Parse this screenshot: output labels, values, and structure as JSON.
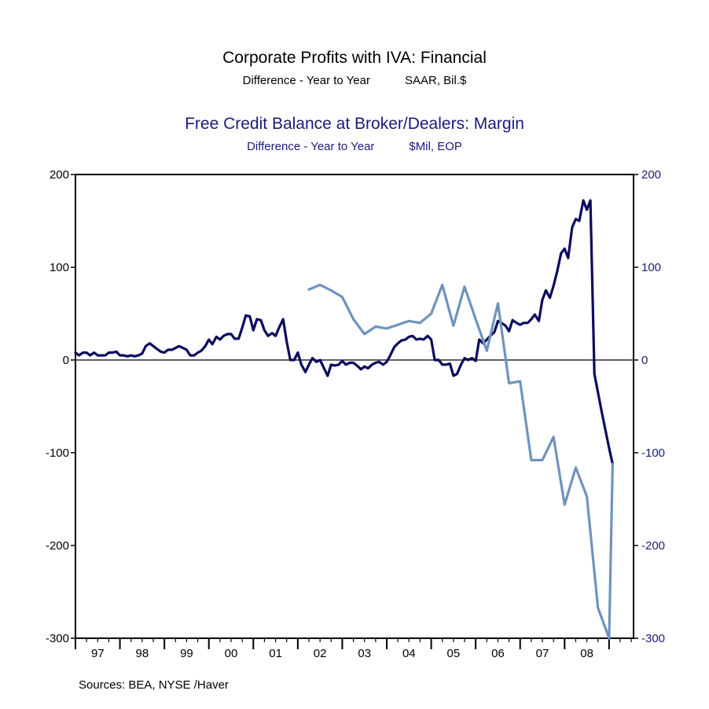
{
  "titles": {
    "main1": "Corporate Profits with IVA: Financial",
    "sub1_left": "Difference - Year to Year",
    "sub1_right": "SAAR, Bil.$",
    "main2": "Free Credit Balance at Broker/Dealers: Margin",
    "sub2_left": "Difference - Year to Year",
    "sub2_right": "$Mil, EOP"
  },
  "source": "Sources:  BEA, NYSE /Haver",
  "colors": {
    "series1": "#0b0b5e",
    "series2": "#6f93bd",
    "axis_right": "#1a1a78"
  },
  "chart_data": {
    "type": "line",
    "x_ticks": [
      "97",
      "98",
      "99",
      "00",
      "01",
      "02",
      "03",
      "04",
      "05",
      "06",
      "07",
      "08"
    ],
    "x_range": [
      1996.0,
      2008.55
    ],
    "y_left": {
      "ticks": [
        "200",
        "100",
        "0",
        "-100",
        "-200",
        "-300"
      ],
      "ylim": [
        -300,
        200
      ]
    },
    "y_right": {
      "ticks": [
        "200",
        "100",
        "0",
        "-100",
        "-200",
        "-300"
      ],
      "ylim": [
        -300,
        200
      ]
    },
    "zero_line": true,
    "series": [
      {
        "name": "Free Credit Balance at Broker/Dealers: Margin",
        "axis": "left",
        "points": [
          [
            1996.0,
            8
          ],
          [
            1996.08,
            5
          ],
          [
            1996.17,
            8
          ],
          [
            1996.25,
            8
          ],
          [
            1996.33,
            5
          ],
          [
            1996.42,
            8
          ],
          [
            1996.5,
            5
          ],
          [
            1996.58,
            5
          ],
          [
            1996.67,
            5
          ],
          [
            1996.75,
            8
          ],
          [
            1996.83,
            8
          ],
          [
            1996.92,
            9
          ],
          [
            1997.0,
            5
          ],
          [
            1997.08,
            5
          ],
          [
            1997.17,
            4
          ],
          [
            1997.25,
            5
          ],
          [
            1997.33,
            4
          ],
          [
            1997.42,
            5
          ],
          [
            1997.5,
            7
          ],
          [
            1997.58,
            15
          ],
          [
            1997.67,
            18
          ],
          [
            1997.75,
            15
          ],
          [
            1997.83,
            12
          ],
          [
            1997.92,
            9
          ],
          [
            1998.0,
            8
          ],
          [
            1998.08,
            11
          ],
          [
            1998.17,
            11
          ],
          [
            1998.25,
            13
          ],
          [
            1998.33,
            15
          ],
          [
            1998.42,
            13
          ],
          [
            1998.5,
            11
          ],
          [
            1998.58,
            5
          ],
          [
            1998.67,
            5
          ],
          [
            1998.75,
            8
          ],
          [
            1998.83,
            10
          ],
          [
            1998.92,
            15
          ],
          [
            1999.0,
            22
          ],
          [
            1999.08,
            17
          ],
          [
            1999.17,
            25
          ],
          [
            1999.25,
            22
          ],
          [
            1999.33,
            26
          ],
          [
            1999.42,
            28
          ],
          [
            1999.5,
            28
          ],
          [
            1999.58,
            23
          ],
          [
            1999.67,
            23
          ],
          [
            1999.75,
            35
          ],
          [
            1999.83,
            48
          ],
          [
            1999.92,
            47
          ],
          [
            2000.0,
            32
          ],
          [
            2000.08,
            44
          ],
          [
            2000.17,
            43
          ],
          [
            2000.25,
            32
          ],
          [
            2000.33,
            26
          ],
          [
            2000.42,
            29
          ],
          [
            2000.5,
            26
          ],
          [
            2000.58,
            35
          ],
          [
            2000.67,
            44
          ],
          [
            2000.75,
            20
          ],
          [
            2000.83,
            0
          ],
          [
            2000.92,
            0
          ],
          [
            2001.0,
            8
          ],
          [
            2001.08,
            -5
          ],
          [
            2001.17,
            -13
          ],
          [
            2001.25,
            -5
          ],
          [
            2001.33,
            2
          ],
          [
            2001.42,
            -2
          ],
          [
            2001.5,
            0
          ],
          [
            2001.58,
            -8
          ],
          [
            2001.67,
            -17
          ],
          [
            2001.75,
            -5
          ],
          [
            2001.83,
            -6
          ],
          [
            2001.92,
            -5
          ],
          [
            2002.0,
            -1
          ],
          [
            2002.08,
            -5
          ],
          [
            2002.17,
            -3
          ],
          [
            2002.25,
            -3
          ],
          [
            2002.33,
            -6
          ],
          [
            2002.42,
            -10
          ],
          [
            2002.5,
            -7
          ],
          [
            2002.58,
            -9
          ],
          [
            2002.67,
            -5
          ],
          [
            2002.75,
            -3
          ],
          [
            2002.83,
            -2
          ],
          [
            2002.92,
            -5
          ],
          [
            2003.0,
            -2
          ],
          [
            2003.08,
            5
          ],
          [
            2003.17,
            14
          ],
          [
            2003.25,
            18
          ],
          [
            2003.33,
            21
          ],
          [
            2003.42,
            22
          ],
          [
            2003.5,
            25
          ],
          [
            2003.58,
            26
          ],
          [
            2003.67,
            22
          ],
          [
            2003.75,
            23
          ],
          [
            2003.83,
            22
          ],
          [
            2003.92,
            26
          ],
          [
            2004.0,
            22
          ],
          [
            2004.08,
            0
          ],
          [
            2004.17,
            0
          ],
          [
            2004.25,
            -5
          ],
          [
            2004.33,
            -5
          ],
          [
            2004.42,
            -4
          ],
          [
            2004.5,
            -17
          ],
          [
            2004.58,
            -15
          ],
          [
            2004.67,
            -5
          ],
          [
            2004.75,
            2
          ],
          [
            2004.83,
            0
          ],
          [
            2004.92,
            2
          ],
          [
            2005.0,
            -1
          ],
          [
            2005.08,
            22
          ],
          [
            2005.17,
            18
          ],
          [
            2005.25,
            22
          ],
          [
            2005.33,
            26
          ],
          [
            2005.42,
            30
          ],
          [
            2005.5,
            42
          ],
          [
            2005.58,
            40
          ],
          [
            2005.67,
            37
          ],
          [
            2005.75,
            31
          ],
          [
            2005.83,
            43
          ],
          [
            2005.92,
            40
          ],
          [
            2006.0,
            38
          ],
          [
            2006.08,
            40
          ],
          [
            2006.17,
            40
          ],
          [
            2006.25,
            44
          ],
          [
            2006.33,
            49
          ],
          [
            2006.42,
            42
          ],
          [
            2006.5,
            65
          ],
          [
            2006.58,
            75
          ],
          [
            2006.67,
            67
          ],
          [
            2006.75,
            80
          ],
          [
            2006.83,
            95
          ],
          [
            2006.92,
            115
          ],
          [
            2007.0,
            120
          ],
          [
            2007.08,
            110
          ],
          [
            2007.17,
            143
          ],
          [
            2007.25,
            152
          ],
          [
            2007.33,
            150
          ],
          [
            2007.42,
            172
          ],
          [
            2007.5,
            162
          ],
          [
            2007.58,
            172
          ],
          [
            2007.67,
            -15
          ],
          [
            2007.83,
            -55
          ],
          [
            2008.0,
            -95
          ],
          [
            2008.08,
            -112
          ]
        ]
      },
      {
        "name": "Corporate Profits with IVA: Financial",
        "axis": "right",
        "points": [
          [
            2001.25,
            76
          ],
          [
            2001.5,
            81
          ],
          [
            2001.75,
            75
          ],
          [
            2002.0,
            68
          ],
          [
            2002.25,
            44
          ],
          [
            2002.5,
            28
          ],
          [
            2002.75,
            36
          ],
          [
            2003.0,
            34
          ],
          [
            2003.25,
            38
          ],
          [
            2003.5,
            42
          ],
          [
            2003.75,
            40
          ],
          [
            2004.0,
            50
          ],
          [
            2004.25,
            81
          ],
          [
            2004.5,
            37
          ],
          [
            2004.75,
            79
          ],
          [
            2005.0,
            44
          ],
          [
            2005.25,
            10
          ],
          [
            2005.5,
            61
          ],
          [
            2005.75,
            -25
          ],
          [
            2006.0,
            -23
          ],
          [
            2006.25,
            -108
          ],
          [
            2006.5,
            -108
          ],
          [
            2006.75,
            -83
          ],
          [
            2007.0,
            -156
          ],
          [
            2007.25,
            -116
          ],
          [
            2007.5,
            -147
          ],
          [
            2007.75,
            -267
          ],
          [
            2008.0,
            -300
          ],
          [
            2008.08,
            -112
          ]
        ]
      }
    ]
  }
}
